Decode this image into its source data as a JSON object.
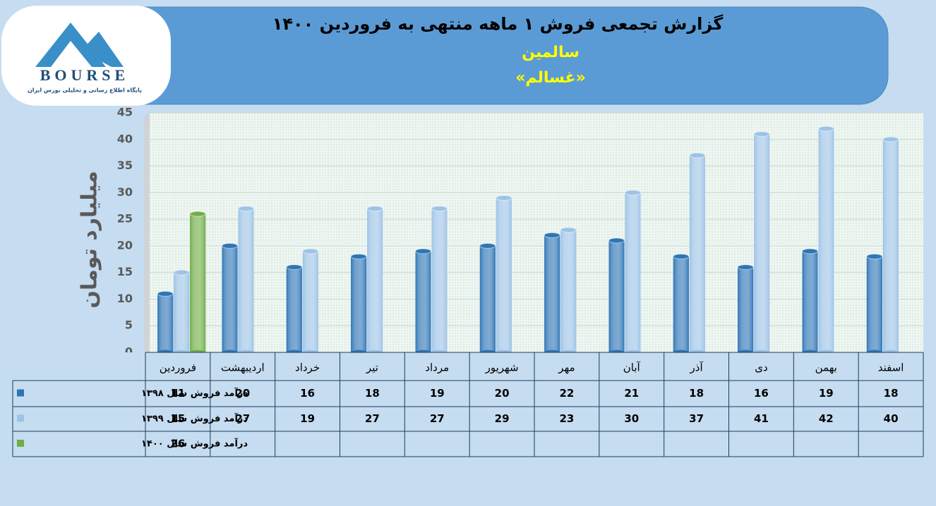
{
  "logo": {
    "text": "BOURSE",
    "subtitle": "پایگاه اطلاع رسانی و تحلیلی بورس ایران"
  },
  "chart_data": {
    "type": "bar",
    "title": "گزارش تجمعی فروش ۱ ماهه منتهی به فروردین ۱۴۰۰",
    "subtitle": "سالمین",
    "symbol": "«غسالم»",
    "y_label": "میلیارد تومان",
    "categories": [
      "فروردین",
      "اردیبهشت",
      "خرداد",
      "تیر",
      "مرداد",
      "شهریور",
      "مهر",
      "آبان",
      "آذر",
      "دی",
      "بهمن",
      "اسفند"
    ],
    "series": [
      {
        "name": "درآمد فروش سال ۱۳۹۸",
        "color": "#2e75b6",
        "values": [
          11,
          20,
          16,
          18,
          19,
          20,
          22,
          21,
          18,
          16,
          19,
          18
        ]
      },
      {
        "name": "درآمد فروش سال ۱۳۹۹",
        "color": "#9dc3e6",
        "values": [
          15,
          27,
          19,
          27,
          27,
          29,
          23,
          30,
          37,
          41,
          42,
          40
        ]
      },
      {
        "name": "درآمد فروش سال ۱۴۰۰",
        "color": "#70ad47",
        "values": [
          26,
          null,
          null,
          null,
          null,
          null,
          null,
          null,
          null,
          null,
          null,
          null
        ]
      }
    ],
    "ylim": [
      0,
      45
    ],
    "yticks": [
      0,
      5,
      10,
      15,
      20,
      25,
      30,
      35,
      40,
      45
    ],
    "grid": true
  }
}
